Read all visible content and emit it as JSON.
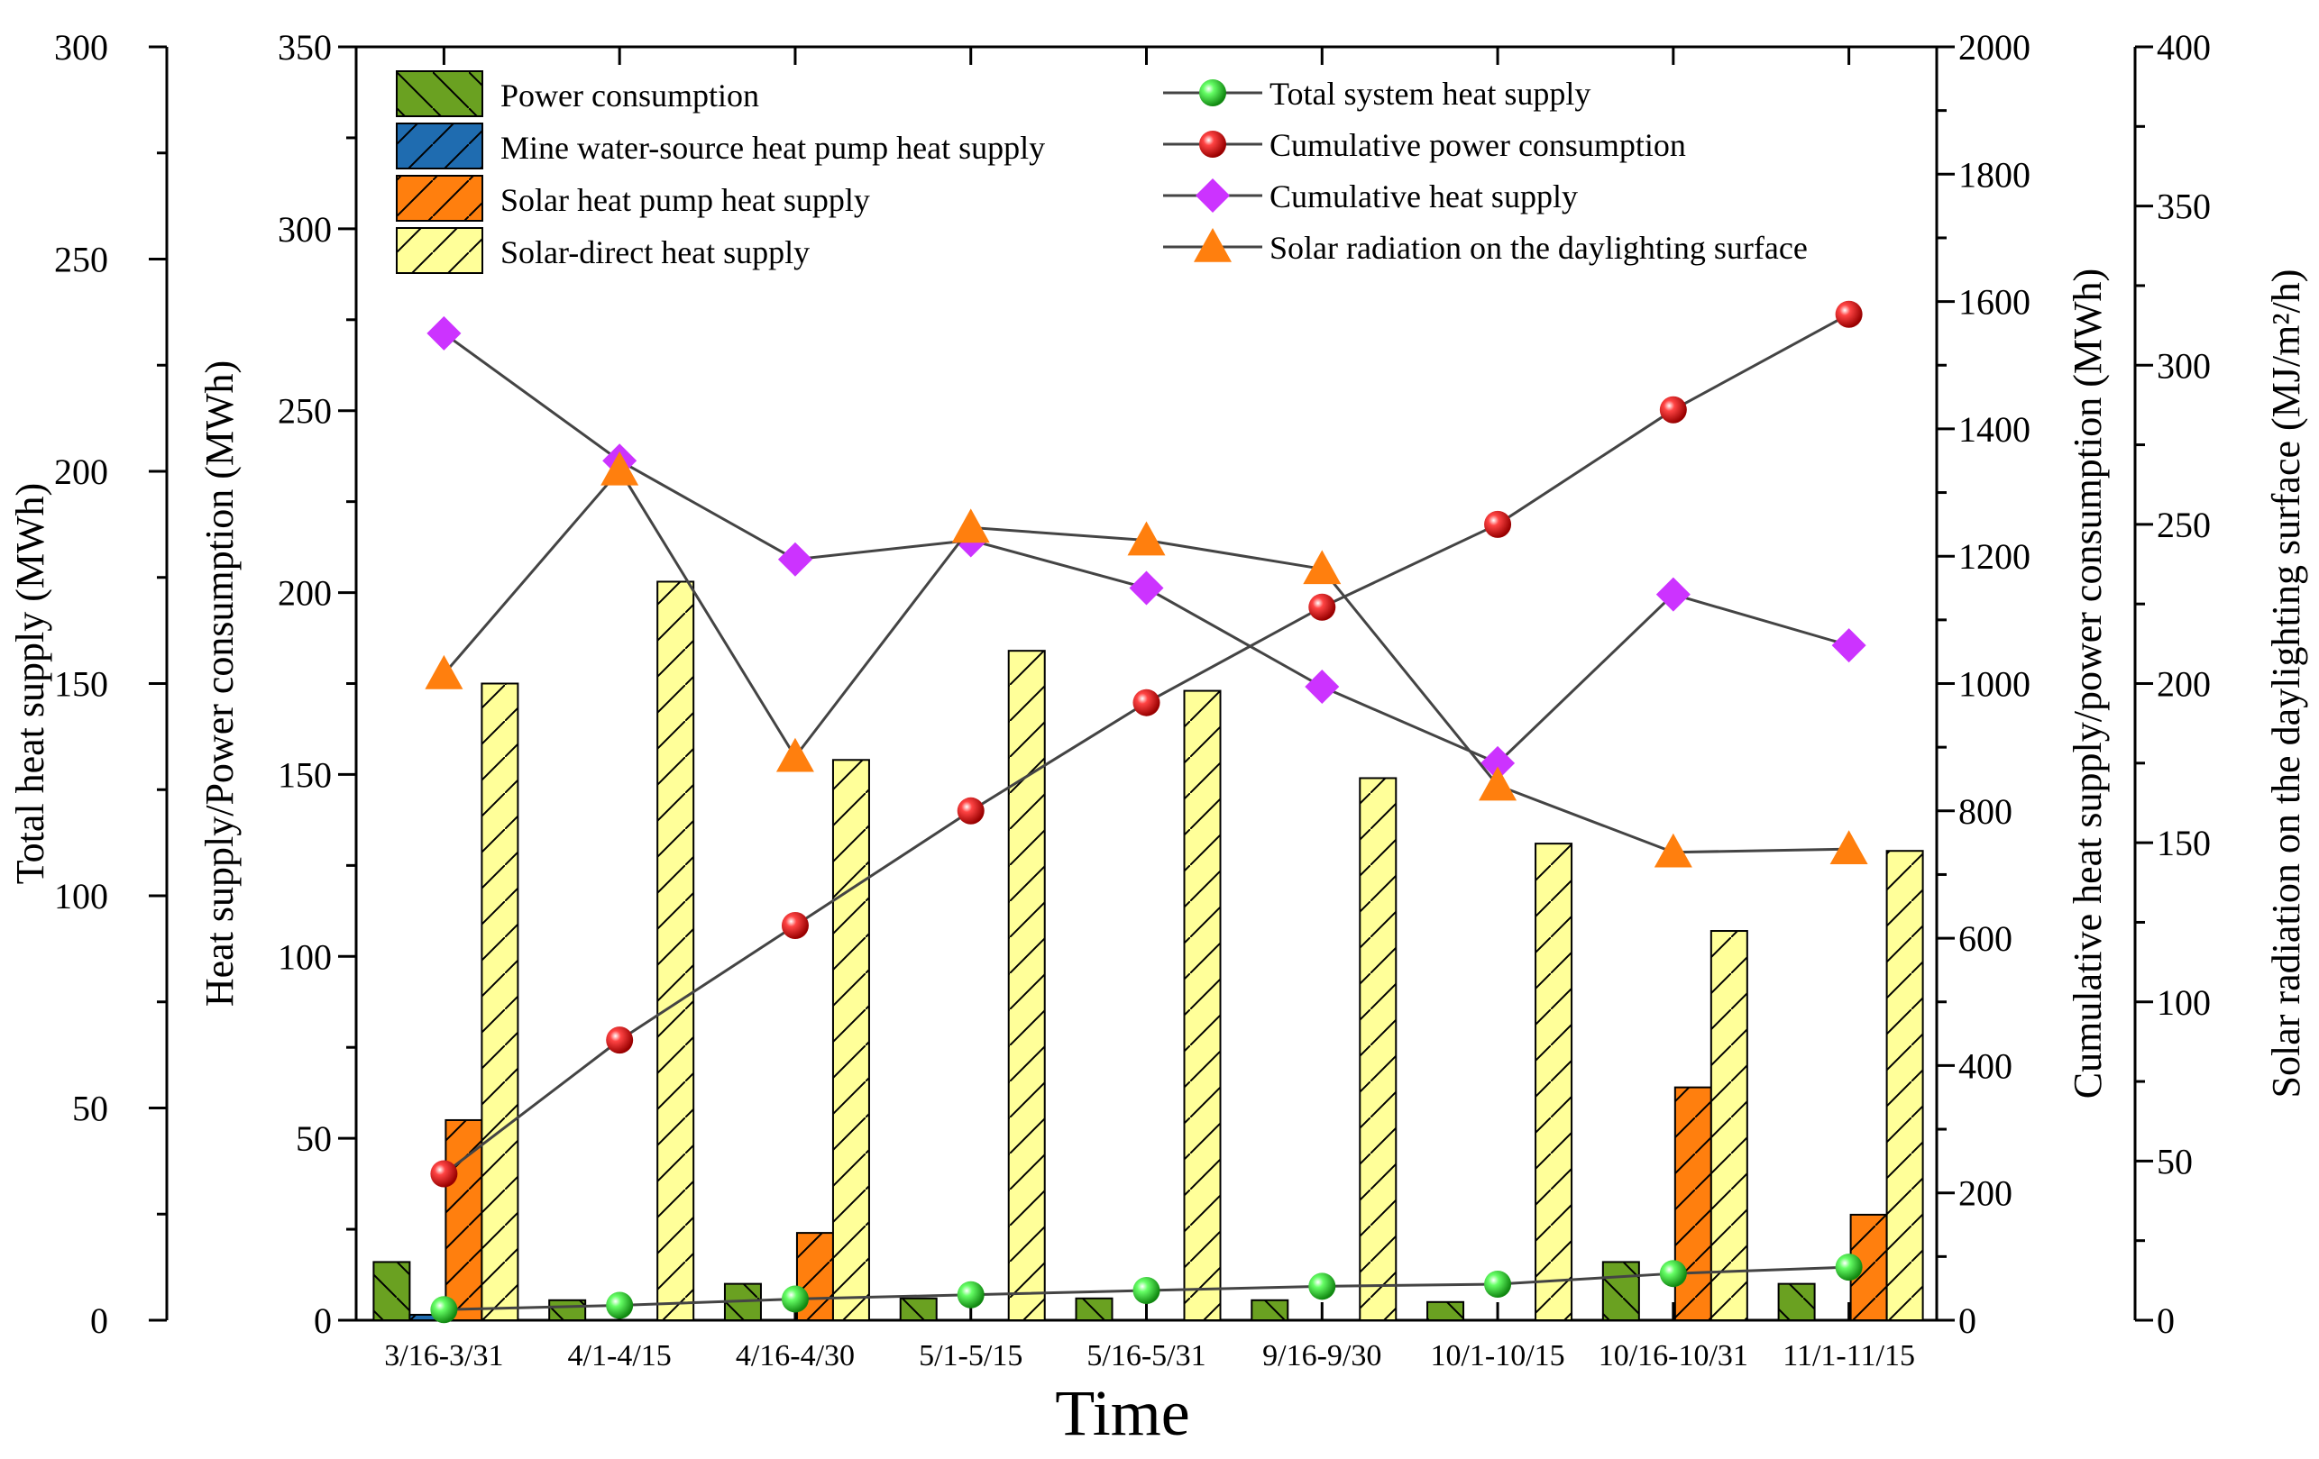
{
  "chart_data": {
    "type": "bar",
    "categories": [
      "3/16-3/31",
      "4/1-4/15",
      "4/16-4/30",
      "5/1-5/15",
      "5/16-5/31",
      "9/16-9/30",
      "10/1-10/15",
      "10/16-10/31",
      "11/1-11/15"
    ],
    "xlabel": "Time",
    "axes": {
      "total_heat": {
        "label": "Total  heat supply (MWh)",
        "range": [
          0,
          300
        ],
        "ticks": [
          0,
          50,
          100,
          150,
          200,
          250,
          300
        ]
      },
      "heat_power": {
        "label": "Heat supply/Power consumption (MWh)",
        "range": [
          0,
          350
        ],
        "ticks": [
          0,
          50,
          100,
          150,
          200,
          250,
          300,
          350
        ]
      },
      "cumulative": {
        "label": "Cumulative heat supply/power consumption (MWh)",
        "range": [
          0,
          2000
        ],
        "ticks": [
          0,
          200,
          400,
          600,
          800,
          1000,
          1200,
          1400,
          1600,
          1800,
          2000
        ]
      },
      "solar": {
        "label": "Solar radiation on the daylighting surface (MJ/m²/h)",
        "range": [
          0,
          400
        ],
        "ticks": [
          0,
          50,
          100,
          150,
          200,
          250,
          300,
          350,
          400
        ]
      }
    },
    "bar_series": [
      {
        "name": "Power consumption",
        "axis": "heat_power",
        "color": "#6aa121",
        "hatch": "back",
        "values": [
          16,
          5.5,
          10,
          6,
          6,
          5.5,
          5,
          16,
          10
        ]
      },
      {
        "name": "Mine water-source heat pump heat supply",
        "axis": "heat_power",
        "color": "#1f6cb0",
        "hatch": "forward",
        "values": [
          1.5,
          0,
          0,
          0,
          0,
          0,
          0,
          0,
          0
        ]
      },
      {
        "name": "Solar heat pump heat supply",
        "axis": "heat_power",
        "color": "#ff7f0e",
        "hatch": "forward",
        "values": [
          55,
          0,
          24,
          0,
          0,
          0,
          0,
          64,
          29
        ]
      },
      {
        "name": "Solar-direct heat supply",
        "axis": "heat_power",
        "color": "#ffff99",
        "hatch": "forward",
        "values": [
          175,
          203,
          154,
          184,
          173,
          149,
          131,
          107,
          129
        ]
      }
    ],
    "line_series": [
      {
        "name": "Total system heat supply",
        "axis": "total_heat",
        "color": "#22dd22",
        "marker": "sphere",
        "values": [
          2.5,
          3.5,
          5,
          6,
          7,
          8,
          8.5,
          11,
          12.5
        ]
      },
      {
        "name": "Cumulative power consumption",
        "axis": "cumulative",
        "color": "#ee1111",
        "marker": "sphere",
        "values": [
          230,
          440,
          620,
          800,
          970,
          1120,
          1250,
          1430,
          1580
        ]
      },
      {
        "name": "Cumulative heat supply",
        "axis": "cumulative",
        "color": "#cc33ff",
        "marker": "diamond",
        "values": [
          1550,
          1350,
          1195,
          1225,
          1150,
          995,
          875,
          1140,
          1060
        ]
      },
      {
        "name": "Solar radiation on the daylighting surface",
        "axis": "solar",
        "color": "#ff7f0e",
        "marker": "triangle",
        "values": [
          203,
          267,
          177,
          249,
          245,
          236,
          168,
          147,
          148
        ]
      }
    ]
  }
}
